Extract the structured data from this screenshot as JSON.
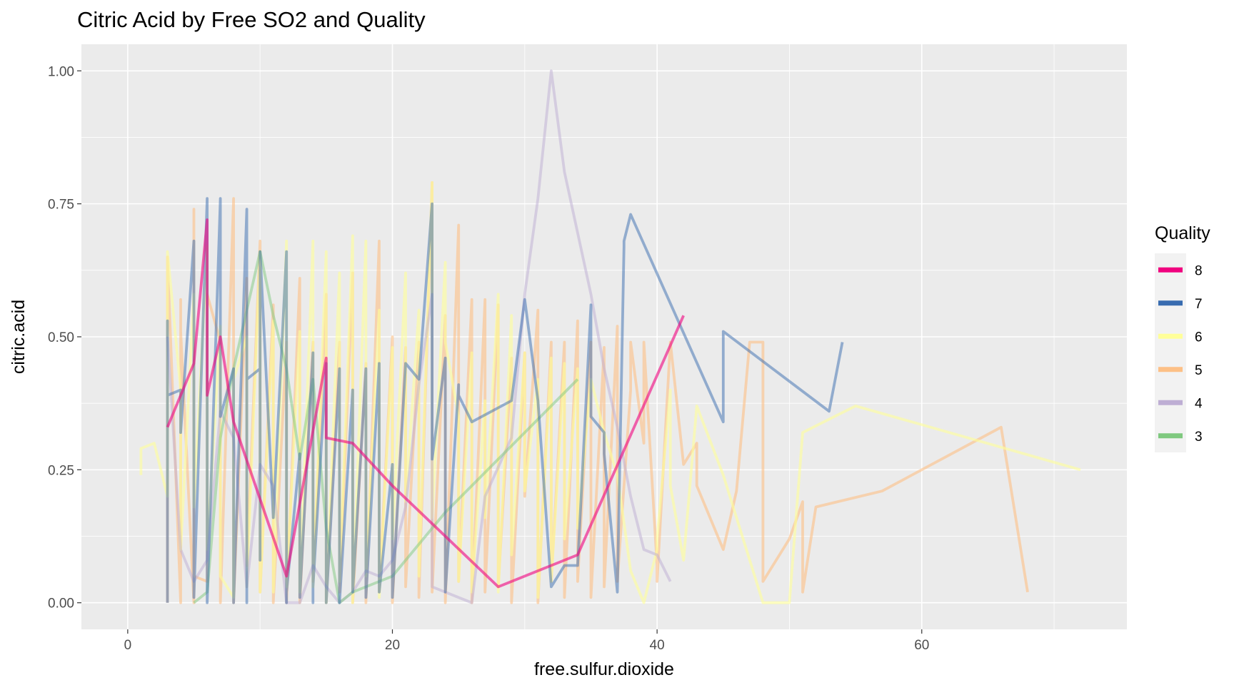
{
  "chart_data": {
    "type": "line",
    "title": "Citric Acid by Free SO2 and Quality",
    "xlabel": "free.sulfur.dioxide",
    "ylabel": "citric.acid",
    "xlim": [
      -3.5,
      75.5
    ],
    "ylim": [
      -0.05,
      1.05
    ],
    "x_ticks": [
      0,
      20,
      40,
      60
    ],
    "x_tick_labels": [
      "0",
      "20",
      "40",
      "60"
    ],
    "y_ticks": [
      0,
      0.25,
      0.5,
      0.75,
      1.0
    ],
    "y_tick_labels": [
      "0.00",
      "0.25",
      "0.50",
      "0.75",
      "1.00"
    ],
    "grid": true,
    "legend_position": "right",
    "legend": {
      "title": "Quality",
      "entries": [
        {
          "label": "8",
          "color": "#F0027F"
        },
        {
          "label": "7",
          "color": "#386CB0"
        },
        {
          "label": "6",
          "color": "#FFFF99"
        },
        {
          "label": "5",
          "color": "#FDC086"
        },
        {
          "label": "4",
          "color": "#BEAED4"
        },
        {
          "label": "3",
          "color": "#7FC97F"
        }
      ]
    },
    "series": [
      {
        "name": "5",
        "color": "#FDC086",
        "opacity": 0.6,
        "x": [
          3,
          3,
          4,
          4,
          4,
          5,
          5,
          5,
          6,
          6,
          7,
          7,
          8,
          8,
          9,
          9,
          10,
          10,
          11,
          11,
          12,
          12,
          13,
          13,
          14,
          14,
          15,
          15,
          16,
          16,
          17,
          17,
          18,
          18,
          19,
          19,
          20,
          20,
          21,
          21,
          22,
          22,
          23,
          23,
          24,
          24,
          25,
          25,
          26,
          26,
          27,
          27,
          28,
          28,
          29,
          29,
          30,
          30,
          31,
          31,
          32,
          32,
          33,
          33,
          34,
          34,
          35,
          35,
          36,
          36,
          37,
          37,
          38,
          38,
          39,
          39,
          40,
          40,
          41,
          42,
          43,
          43,
          45,
          46,
          47,
          48,
          48,
          50,
          51,
          51,
          52,
          57,
          66,
          68
        ],
        "y": [
          0.0,
          0.65,
          0.0,
          0.57,
          0.51,
          0.0,
          0.74,
          0.05,
          0.04,
          0.58,
          0.49,
          0.0,
          0.76,
          0.0,
          0.61,
          0.07,
          0.68,
          0.02,
          0.56,
          0.0,
          0.49,
          0.0,
          0.61,
          0.0,
          0.49,
          0.04,
          0.58,
          0.0,
          0.49,
          0.02,
          0.62,
          0.0,
          0.45,
          0.0,
          0.68,
          0.02,
          0.5,
          0.0,
          0.48,
          0.03,
          0.49,
          0.01,
          0.79,
          0.02,
          0.54,
          0.0,
          0.71,
          0.04,
          0.57,
          0.0,
          0.57,
          0.02,
          0.56,
          0.03,
          0.46,
          0.0,
          0.47,
          0.2,
          0.55,
          0.0,
          0.49,
          0.04,
          0.49,
          0.01,
          0.53,
          0.04,
          0.49,
          0.01,
          0.48,
          0.03,
          0.52,
          0.04,
          0.4,
          0.49,
          0.3,
          0.49,
          0.07,
          0.04,
          0.49,
          0.26,
          0.3,
          0.22,
          0.1,
          0.21,
          0.49,
          0.49,
          0.04,
          0.12,
          0.19,
          0.02,
          0.18,
          0.21,
          0.33,
          0.02
        ]
      },
      {
        "name": "6",
        "color": "#FFFF99",
        "opacity": 0.6,
        "x": [
          1,
          1,
          2,
          3,
          3,
          4,
          4,
          5,
          5,
          6,
          6,
          7,
          7,
          8,
          8,
          9,
          9,
          10,
          10,
          11,
          11,
          12,
          12,
          13,
          13,
          14,
          14,
          15,
          15,
          16,
          16,
          17,
          17,
          18,
          18,
          19,
          19,
          20,
          20,
          21,
          21,
          22,
          22,
          23,
          23,
          24,
          24,
          25,
          25,
          26,
          26,
          27,
          27,
          28,
          28,
          29,
          29,
          30,
          30,
          31,
          31,
          32,
          32,
          33,
          33,
          34,
          34,
          35,
          36,
          37,
          38,
          39,
          40,
          40,
          41,
          41,
          42,
          43,
          45,
          48,
          50,
          51,
          55,
          72
        ],
        "y": [
          0.24,
          0.29,
          0.3,
          0.2,
          0.66,
          0.4,
          0.1,
          0.58,
          0.18,
          0.67,
          0.1,
          0.52,
          0.05,
          0.01,
          0.42,
          0.5,
          0.03,
          0.66,
          0.02,
          0.53,
          0.02,
          0.68,
          0.03,
          0.51,
          0.02,
          0.68,
          0.03,
          0.66,
          0.0,
          0.62,
          0.04,
          0.69,
          0.0,
          0.68,
          0.05,
          0.55,
          0.01,
          0.48,
          0.12,
          0.62,
          0.19,
          0.55,
          0.05,
          0.79,
          0.16,
          0.64,
          0.49,
          0.35,
          0.04,
          0.47,
          0.02,
          0.38,
          0.16,
          0.58,
          0.02,
          0.54,
          0.09,
          0.47,
          0.21,
          0.42,
          0.01,
          0.46,
          0.04,
          0.45,
          0.12,
          0.44,
          0.14,
          0.42,
          0.32,
          0.24,
          0.06,
          0.0,
          0.1,
          0.12,
          0.4,
          0.22,
          0.08,
          0.37,
          0.24,
          0.0,
          0.0,
          0.32,
          0.37,
          0.25
        ]
      },
      {
        "name": "4",
        "color": "#BEAED4",
        "opacity": 0.5,
        "x": [
          3,
          4,
          5,
          6,
          7,
          8,
          9,
          10,
          11,
          12,
          13,
          14,
          15,
          16,
          17,
          18,
          19,
          20,
          21,
          22,
          23,
          23,
          26,
          27,
          29,
          30,
          31,
          32,
          33,
          35,
          36,
          37,
          38,
          39,
          40,
          41
        ],
        "y": [
          0.5,
          0.1,
          0.04,
          0.08,
          0.36,
          0.31,
          0.03,
          0.26,
          0.22,
          0.0,
          0.0,
          0.07,
          0.03,
          0.0,
          0.02,
          0.06,
          0.05,
          0.08,
          0.18,
          0.41,
          0.58,
          0.03,
          0.0,
          0.2,
          0.31,
          0.58,
          0.76,
          1.0,
          0.81,
          0.58,
          0.44,
          0.33,
          0.2,
          0.1,
          0.09,
          0.04
        ]
      },
      {
        "name": "3",
        "color": "#7FC97F",
        "opacity": 0.5,
        "x": [
          5,
          6,
          7,
          8,
          9,
          10,
          11,
          12,
          13,
          14,
          15,
          16,
          17,
          18,
          20,
          24,
          28,
          34
        ],
        "y": [
          0.0,
          0.02,
          0.31,
          0.44,
          0.55,
          0.66,
          0.54,
          0.44,
          0.27,
          0.42,
          0.14,
          0.0,
          0.02,
          0.03,
          0.05,
          0.17,
          0.27,
          0.42
        ]
      },
      {
        "name": "7",
        "color": "#386CB0",
        "opacity": 0.5,
        "x": [
          3,
          3,
          3,
          4,
          4,
          5,
          5,
          6,
          6,
          7,
          7,
          7,
          8,
          8,
          9,
          9,
          9,
          10,
          10,
          10,
          11,
          11,
          12,
          12,
          12,
          13,
          13,
          14,
          14,
          14,
          15,
          15,
          16,
          16,
          17,
          17,
          18,
          18,
          19,
          19,
          20,
          20,
          21,
          22,
          23,
          23,
          24,
          24,
          25,
          25,
          26,
          29,
          30,
          31,
          31,
          32,
          33,
          34,
          35,
          35,
          36,
          36,
          37,
          37,
          37.5,
          37.5,
          38,
          45,
          45,
          53,
          54
        ],
        "y": [
          0.0,
          0.53,
          0.39,
          0.4,
          0.32,
          0.68,
          0.01,
          0.76,
          0.0,
          0.76,
          0.42,
          0.35,
          0.44,
          0.0,
          0.74,
          0.0,
          0.42,
          0.44,
          0.08,
          0.66,
          0.16,
          0.16,
          0.66,
          0.0,
          0.02,
          0.28,
          0.01,
          0.47,
          0.0,
          0.03,
          0.45,
          0.0,
          0.44,
          0.0,
          0.4,
          0.02,
          0.44,
          0.01,
          0.45,
          0.02,
          0.26,
          0.01,
          0.45,
          0.42,
          0.75,
          0.27,
          0.46,
          0.02,
          0.41,
          0.39,
          0.34,
          0.38,
          0.57,
          0.38,
          0.38,
          0.03,
          0.07,
          0.07,
          0.56,
          0.35,
          0.32,
          0.28,
          0.02,
          0.02,
          0.67,
          0.68,
          0.73,
          0.34,
          0.51,
          0.36,
          0.49
        ]
      },
      {
        "name": "8",
        "color": "#F0027F",
        "opacity": 0.6,
        "x": [
          3,
          5,
          6,
          6,
          7,
          8,
          12,
          15,
          15,
          17,
          20,
          28,
          34,
          42
        ],
        "y": [
          0.33,
          0.45,
          0.72,
          0.39,
          0.5,
          0.34,
          0.05,
          0.46,
          0.31,
          0.3,
          0.22,
          0.03,
          0.09,
          0.54
        ]
      }
    ]
  }
}
